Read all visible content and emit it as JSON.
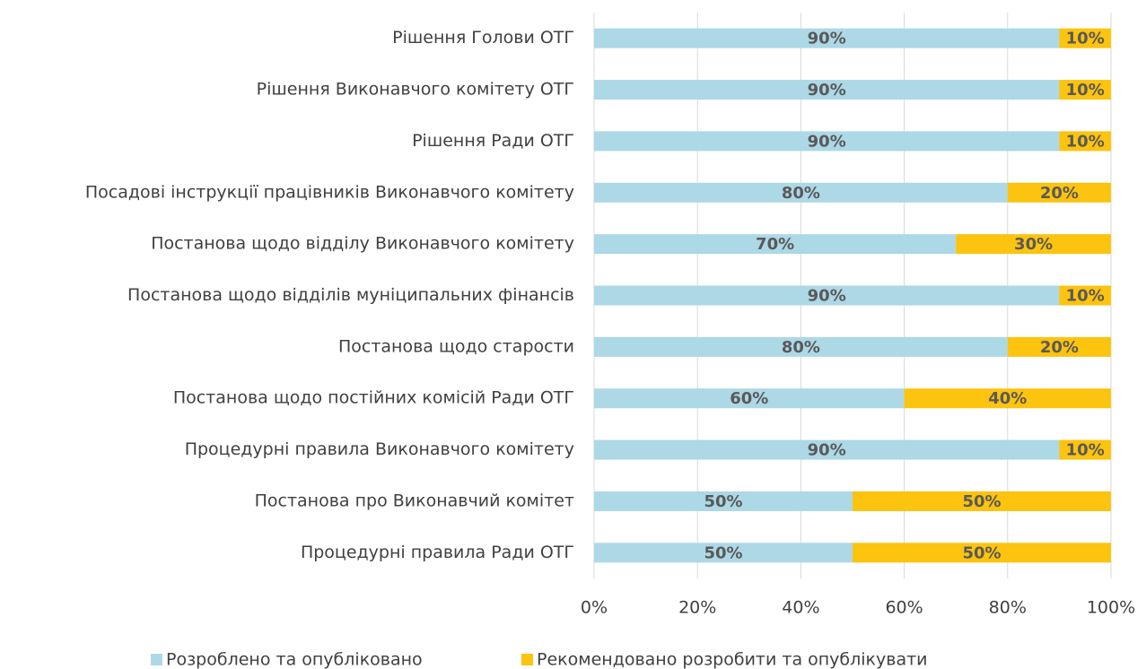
{
  "chart_data": {
    "type": "stacked-bar-horizontal",
    "categories": [
      "Рішення Голови ОТГ",
      "Рішення Виконавчого комітету ОТГ",
      "Рішення Ради ОТГ",
      "Посадові інструкції працівників Виконавчого комітету",
      "Постанова щодо відділу Виконавчого комітету",
      "Постанова щодо відділів муніципальних фінансів",
      "Постанова щодо старости",
      "Постанова щодо постійних комісій Ради ОТГ",
      "Процедурні правила Виконавчого комітету",
      "Постанова про Виконавчий комітет",
      "Процедурні правила Ради ОТГ"
    ],
    "series": [
      {
        "name": "Розроблено та опубліковано",
        "color": "#add8e6",
        "values": [
          90,
          90,
          90,
          80,
          70,
          90,
          80,
          60,
          90,
          50,
          50
        ],
        "value_labels": [
          "90%",
          "90%",
          "90%",
          "80%",
          "70%",
          "90%",
          "80%",
          "60%",
          "90%",
          "50%",
          "50%"
        ]
      },
      {
        "name": "Рекомендовано розробити та опублікувати",
        "color": "#fcc30f",
        "values": [
          10,
          10,
          10,
          20,
          30,
          10,
          20,
          40,
          10,
          50,
          50
        ],
        "value_labels": [
          "10%",
          "10%",
          "10%",
          "20%",
          "30%",
          "10%",
          "20%",
          "40%",
          "10%",
          "50%",
          "50%"
        ]
      }
    ],
    "xlim": [
      0,
      100
    ],
    "xticks": [
      {
        "value": 0,
        "label": "0%"
      },
      {
        "value": 20,
        "label": "20%"
      },
      {
        "value": 40,
        "label": "40%"
      },
      {
        "value": 60,
        "label": "60%"
      },
      {
        "value": 80,
        "label": "80%"
      },
      {
        "value": 100,
        "label": "100%"
      }
    ],
    "grid": true,
    "legend": "bottom"
  }
}
